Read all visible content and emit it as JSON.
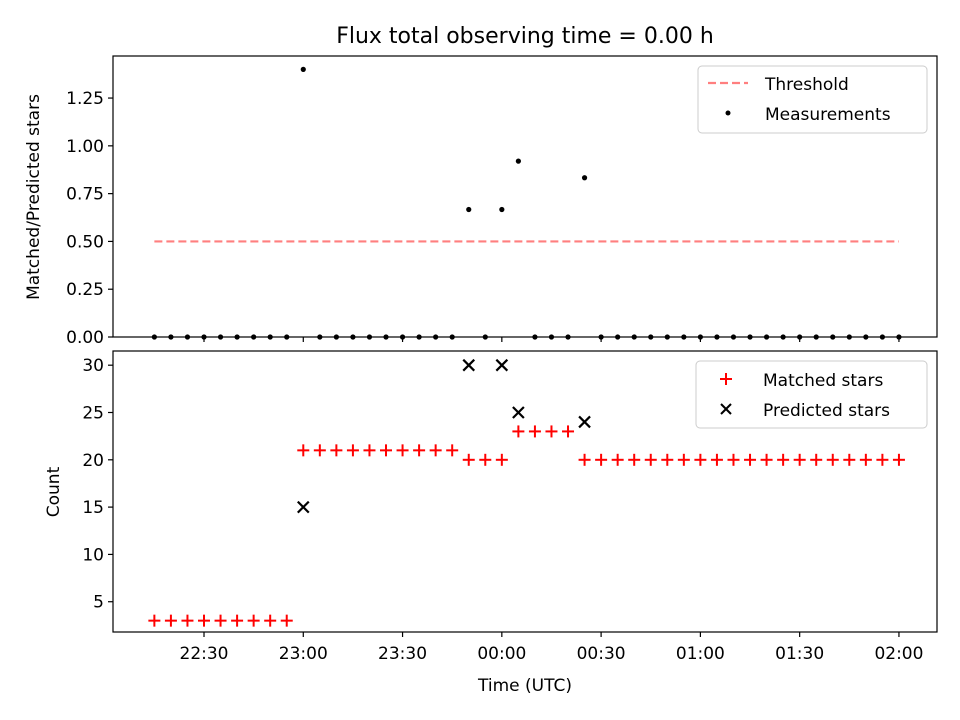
{
  "chart_data": {
    "type": "scatter",
    "title": "Flux total observing time = 0.00 h",
    "x_tick_labels": [
      "22:30",
      "23:00",
      "23:30",
      "00:00",
      "00:30",
      "01:00",
      "01:30",
      "02:00"
    ],
    "x_tick_minutes": [
      0,
      30,
      60,
      90,
      120,
      150,
      180,
      210
    ],
    "xlabel": "Time (UTC)",
    "x_range_minutes_since_22_30": [
      -27.5,
      221.5
    ],
    "panels": [
      {
        "ylabel": "Matched/Predicted stars",
        "ylim": [
          0,
          1.47
        ],
        "y_ticks": [
          "0.00",
          "0.25",
          "0.50",
          "0.75",
          "1.00",
          "1.25"
        ],
        "y_tick_values": [
          0,
          0.25,
          0.5,
          0.75,
          1.0,
          1.25
        ],
        "legend_position": "upper right",
        "series": [
          {
            "name": "Threshold",
            "style": "dashed-line",
            "color": "#ff7f7f",
            "x": [
              -15,
              210
            ],
            "y": [
              0.5,
              0.5
            ]
          },
          {
            "name": "Measurements",
            "style": "dot",
            "color": "#000000",
            "x": [
              -15,
              -10,
              -5,
              0,
              5,
              10,
              15,
              20,
              25,
              30,
              35,
              40,
              45,
              50,
              55,
              60,
              65,
              70,
              75,
              80,
              85,
              90,
              95,
              100,
              105,
              110,
              115,
              120,
              125,
              130,
              135,
              140,
              145,
              150,
              155,
              160,
              165,
              170,
              175,
              180,
              185,
              190,
              195,
              200,
              205,
              210
            ],
            "y": [
              0,
              0,
              0,
              0,
              0,
              0,
              0,
              0,
              0,
              1.4,
              0,
              0,
              0,
              0,
              0,
              0,
              0,
              0,
              0,
              0.667,
              0,
              0.667,
              0.92,
              0,
              0,
              0,
              0.833,
              0,
              0,
              0,
              0,
              0,
              0,
              0,
              0,
              0,
              0,
              0,
              0,
              0,
              0,
              0,
              0,
              0,
              0,
              0
            ]
          }
        ]
      },
      {
        "ylabel": "Count",
        "ylim": [
          1.8,
          31.5
        ],
        "y_ticks": [
          "5",
          "10",
          "15",
          "20",
          "25",
          "30"
        ],
        "y_tick_values": [
          5,
          10,
          15,
          20,
          25,
          30
        ],
        "legend_position": "upper right",
        "series": [
          {
            "name": "Matched stars",
            "style": "plus",
            "color": "#ff0000",
            "x": [
              -15,
              -10,
              -5,
              0,
              5,
              10,
              15,
              20,
              25,
              30,
              35,
              40,
              45,
              50,
              55,
              60,
              65,
              70,
              75,
              80,
              85,
              90,
              95,
              100,
              105,
              110,
              115,
              120,
              125,
              130,
              135,
              140,
              145,
              150,
              155,
              160,
              165,
              170,
              175,
              180,
              185,
              190,
              195,
              200,
              205,
              210
            ],
            "y": [
              3,
              3,
              3,
              3,
              3,
              3,
              3,
              3,
              3,
              21,
              21,
              21,
              21,
              21,
              21,
              21,
              21,
              21,
              21,
              20,
              20,
              20,
              23,
              23,
              23,
              23,
              20,
              20,
              20,
              20,
              20,
              20,
              20,
              20,
              20,
              20,
              20,
              20,
              20,
              20,
              20,
              20,
              20,
              20,
              20,
              20
            ]
          },
          {
            "name": "Predicted stars",
            "style": "x",
            "color": "#000000",
            "x": [
              30,
              80,
              90,
              95,
              115
            ],
            "y": [
              15,
              30,
              30,
              25,
              24
            ]
          }
        ]
      }
    ]
  }
}
